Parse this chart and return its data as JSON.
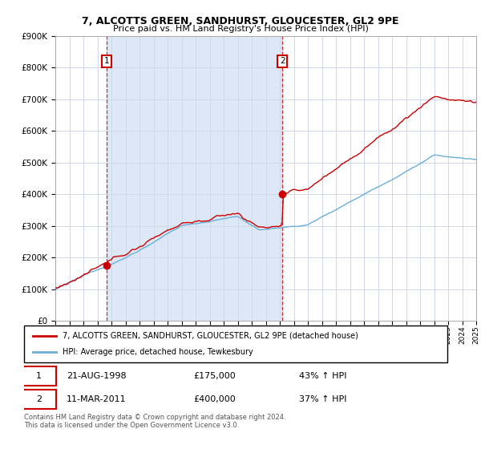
{
  "title": "7, ALCOTTS GREEN, SANDHURST, GLOUCESTER, GL2 9PE",
  "subtitle": "Price paid vs. HM Land Registry's House Price Index (HPI)",
  "legend_line1": "7, ALCOTTS GREEN, SANDHURST, GLOUCESTER, GL2 9PE (detached house)",
  "legend_line2": "HPI: Average price, detached house, Tewkesbury",
  "sale1_date": "21-AUG-1998",
  "sale1_price": "£175,000",
  "sale1_hpi": "43% ↑ HPI",
  "sale2_date": "11-MAR-2011",
  "sale2_price": "£400,000",
  "sale2_hpi": "37% ↑ HPI",
  "footer": "Contains HM Land Registry data © Crown copyright and database right 2024.\nThis data is licensed under the Open Government Licence v3.0.",
  "hpi_color": "#6baed6",
  "price_color": "#cc0000",
  "sale1_year": 1998.64,
  "sale2_year": 2011.19,
  "ylim": [
    0,
    900000
  ],
  "xlim_start": 1995,
  "xlim_end": 2025,
  "background_color": "#ffffff",
  "grid_color": "#d0d8e8",
  "shade_color": "#dce8f5"
}
